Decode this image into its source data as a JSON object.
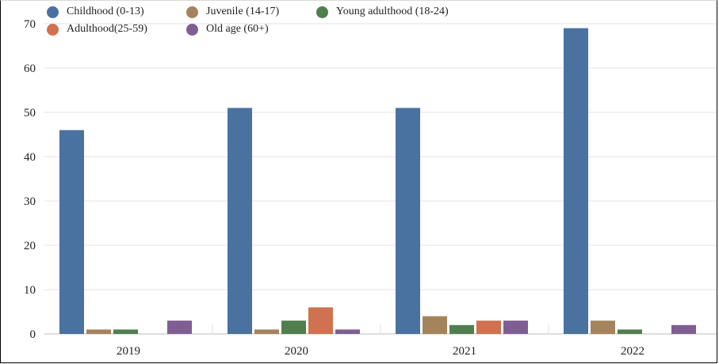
{
  "chart_data": {
    "type": "bar",
    "title": "",
    "xlabel": "",
    "ylabel": "",
    "ylim": [
      0,
      70
    ],
    "yticks": [
      0,
      10,
      20,
      30,
      40,
      50,
      60,
      70
    ],
    "grid": true,
    "legend_position": "top-left",
    "categories": [
      "2019",
      "2020",
      "2021",
      "2022"
    ],
    "series": [
      {
        "name": "Childhood (0-13)",
        "color": "#4a72a0",
        "values": [
          46,
          51,
          51,
          69
        ]
      },
      {
        "name": "Juvenile (14-17)",
        "color": "#a5835c",
        "values": [
          1,
          1,
          4,
          3
        ]
      },
      {
        "name": "Young adulthood (18-24)",
        "color": "#517e4d",
        "values": [
          1,
          3,
          2,
          1
        ]
      },
      {
        "name": "Adulthood(25-59)",
        "color": "#d0714f",
        "values": [
          0,
          6,
          3,
          0
        ]
      },
      {
        "name": "Old age (60+)",
        "color": "#7e5e93",
        "values": [
          3,
          1,
          3,
          2
        ]
      }
    ]
  }
}
